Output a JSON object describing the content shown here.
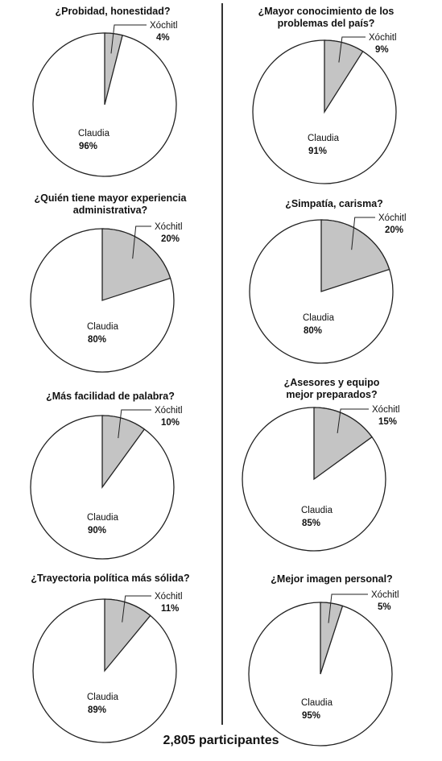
{
  "footer": "2,805 participantes",
  "colors": {
    "xochitl_slice": "#c4c4c4",
    "claudia_slice": "#ffffff",
    "outline": "#222222"
  },
  "chart_data": [
    {
      "type": "pie",
      "title": [
        "¿Probidad, honestidad?"
      ],
      "slices": [
        {
          "label": "Xóchitl",
          "value": 4,
          "text": "4%"
        },
        {
          "label": "Claudia",
          "value": 96,
          "text": "96%"
        }
      ]
    },
    {
      "type": "pie",
      "title": [
        "¿Mayor conocimiento de los",
        "problemas del país?"
      ],
      "slices": [
        {
          "label": "Xóchitl",
          "value": 9,
          "text": "9%"
        },
        {
          "label": "Claudia",
          "value": 91,
          "text": "91%"
        }
      ]
    },
    {
      "type": "pie",
      "title": [
        "¿Quién tiene mayor experiencia",
        "administrativa?"
      ],
      "slices": [
        {
          "label": "Xóchitl",
          "value": 20,
          "text": "20%"
        },
        {
          "label": "Claudia",
          "value": 80,
          "text": "80%"
        }
      ]
    },
    {
      "type": "pie",
      "title": [
        "¿Simpatía, carisma?"
      ],
      "slices": [
        {
          "label": "Xóchitl",
          "value": 20,
          "text": "20%"
        },
        {
          "label": "Claudia",
          "value": 80,
          "text": "80%"
        }
      ]
    },
    {
      "type": "pie",
      "title": [
        "¿Más facilidad de palabra?"
      ],
      "slices": [
        {
          "label": "Xóchitl",
          "value": 10,
          "text": "10%"
        },
        {
          "label": "Claudia",
          "value": 90,
          "text": "90%"
        }
      ]
    },
    {
      "type": "pie",
      "title": [
        "¿Asesores y equipo",
        "mejor preparados?"
      ],
      "slices": [
        {
          "label": "Xóchitl",
          "value": 15,
          "text": "15%"
        },
        {
          "label": "Claudia",
          "value": 85,
          "text": "85%"
        }
      ]
    },
    {
      "type": "pie",
      "title": [
        "¿Trayectoria política más sólida?"
      ],
      "slices": [
        {
          "label": "Xóchitl",
          "value": 11,
          "text": "11%"
        },
        {
          "label": "Claudia",
          "value": 89,
          "text": "89%"
        }
      ]
    },
    {
      "type": "pie",
      "title": [
        "¿Mejor imagen personal?"
      ],
      "slices": [
        {
          "label": "Xóchitl",
          "value": 5,
          "text": "5%"
        },
        {
          "label": "Claudia",
          "value": 95,
          "text": "95%"
        }
      ]
    }
  ]
}
